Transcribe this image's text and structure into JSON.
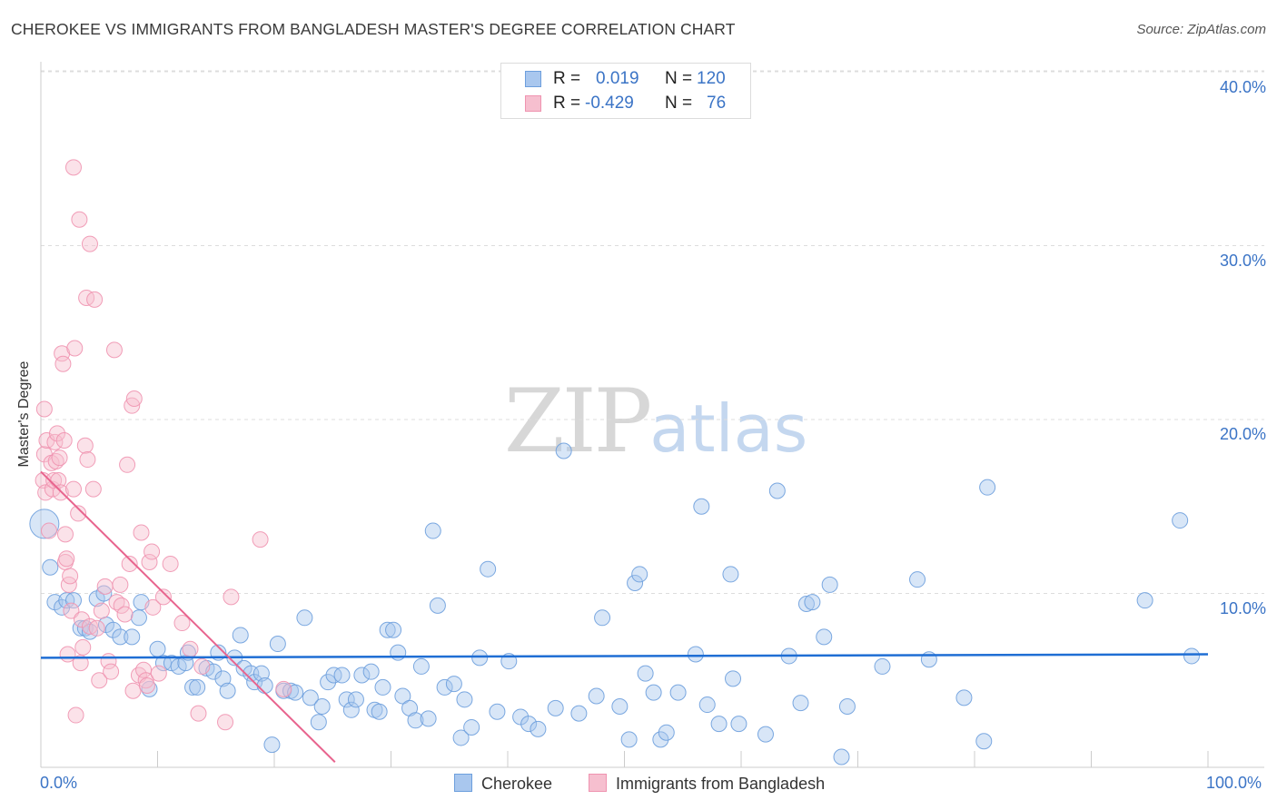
{
  "title": "CHEROKEE VS IMMIGRANTS FROM BANGLADESH MASTER'S DEGREE CORRELATION CHART",
  "source": "Source: ZipAtlas.com",
  "watermark": {
    "zip": "ZIP",
    "atlas": "atlas"
  },
  "colors": {
    "cherokee_fill": "#a9c7ee",
    "cherokee_stroke": "#6d9fdd",
    "cherokee_line": "#1f6ed4",
    "bangladesh_fill": "#f6bfcf",
    "bangladesh_stroke": "#ef93b0",
    "bangladesh_line": "#e8648e",
    "axis_text": "#3b74c6",
    "grid": "#dddddd"
  },
  "legend": {
    "row1": {
      "r_label": "R =",
      "r_value": "0.019",
      "n_label": "N =",
      "n_value": "120"
    },
    "row2": {
      "r_label": "R =",
      "r_value": "-0.429",
      "n_label": "N =",
      "n_value": "76"
    }
  },
  "bottom_legend": {
    "series1": "Cherokee",
    "series2": "Immigrants from Bangladesh"
  },
  "chart_data": {
    "type": "scatter",
    "title": "CHEROKEE VS IMMIGRANTS FROM BANGLADESH MASTER'S DEGREE CORRELATION CHART",
    "xlabel": "",
    "ylabel": "Master's Degree",
    "xlim": [
      0,
      100
    ],
    "ylim": [
      0,
      42
    ],
    "x_tick_labels": [
      "0.0%",
      "100.0%"
    ],
    "y_ticks": [
      10,
      20,
      30,
      40
    ],
    "y_tick_labels": [
      "10.0%",
      "20.0%",
      "30.0%",
      "40.0%"
    ],
    "grid": true,
    "series": [
      {
        "name": "Cherokee",
        "R": 0.019,
        "N": 120,
        "trend": {
          "x0": 0,
          "y0": 6.3,
          "x1": 100,
          "y1": 6.5
        },
        "points": [
          [
            0.3,
            14.0
          ],
          [
            0.8,
            11.5
          ],
          [
            1.2,
            9.5
          ],
          [
            1.8,
            9.2
          ],
          [
            2.2,
            9.6
          ],
          [
            2.8,
            9.6
          ],
          [
            3.4,
            8.0
          ],
          [
            3.8,
            8.0
          ],
          [
            4.2,
            7.8
          ],
          [
            4.8,
            9.7
          ],
          [
            5.4,
            10.0
          ],
          [
            5.6,
            8.2
          ],
          [
            6.2,
            7.9
          ],
          [
            6.8,
            7.5
          ],
          [
            7.8,
            7.5
          ],
          [
            8.4,
            8.6
          ],
          [
            8.6,
            9.5
          ],
          [
            9.3,
            4.5
          ],
          [
            10.0,
            6.8
          ],
          [
            10.5,
            6.0
          ],
          [
            11.2,
            6.0
          ],
          [
            11.8,
            5.8
          ],
          [
            12.4,
            6.0
          ],
          [
            12.6,
            6.6
          ],
          [
            13.0,
            4.6
          ],
          [
            13.4,
            4.6
          ],
          [
            14.2,
            5.7
          ],
          [
            14.8,
            5.5
          ],
          [
            15.2,
            6.6
          ],
          [
            15.6,
            5.1
          ],
          [
            16.0,
            4.4
          ],
          [
            16.6,
            6.3
          ],
          [
            17.1,
            7.6
          ],
          [
            17.4,
            5.7
          ],
          [
            18.0,
            5.4
          ],
          [
            18.3,
            4.9
          ],
          [
            18.9,
            5.4
          ],
          [
            19.2,
            4.7
          ],
          [
            19.8,
            1.3
          ],
          [
            20.3,
            7.1
          ],
          [
            20.8,
            4.4
          ],
          [
            21.4,
            4.4
          ],
          [
            21.8,
            4.3
          ],
          [
            22.6,
            8.6
          ],
          [
            23.1,
            4.0
          ],
          [
            23.8,
            2.6
          ],
          [
            24.1,
            3.5
          ],
          [
            24.6,
            4.9
          ],
          [
            25.1,
            5.3
          ],
          [
            25.8,
            5.3
          ],
          [
            26.2,
            3.9
          ],
          [
            26.6,
            3.3
          ],
          [
            27.0,
            3.9
          ],
          [
            27.5,
            5.3
          ],
          [
            28.3,
            5.5
          ],
          [
            28.6,
            3.3
          ],
          [
            29.0,
            3.2
          ],
          [
            29.3,
            4.6
          ],
          [
            29.7,
            7.9
          ],
          [
            30.2,
            7.9
          ],
          [
            30.6,
            6.6
          ],
          [
            31.0,
            4.1
          ],
          [
            31.6,
            3.4
          ],
          [
            32.1,
            2.7
          ],
          [
            32.6,
            5.8
          ],
          [
            33.2,
            2.8
          ],
          [
            33.6,
            13.6
          ],
          [
            34.0,
            9.3
          ],
          [
            34.6,
            4.6
          ],
          [
            35.4,
            4.8
          ],
          [
            36.0,
            1.7
          ],
          [
            36.3,
            3.9
          ],
          [
            36.9,
            2.3
          ],
          [
            37.6,
            6.3
          ],
          [
            38.3,
            11.4
          ],
          [
            39.1,
            3.2
          ],
          [
            40.1,
            6.1
          ],
          [
            41.1,
            2.9
          ],
          [
            41.8,
            2.5
          ],
          [
            42.6,
            2.2
          ],
          [
            44.1,
            3.4
          ],
          [
            44.8,
            18.2
          ],
          [
            46.1,
            3.1
          ],
          [
            47.6,
            4.1
          ],
          [
            48.1,
            8.6
          ],
          [
            49.6,
            3.5
          ],
          [
            50.4,
            1.6
          ],
          [
            50.9,
            10.6
          ],
          [
            51.3,
            11.1
          ],
          [
            51.8,
            5.4
          ],
          [
            52.5,
            4.3
          ],
          [
            53.1,
            1.6
          ],
          [
            53.6,
            2.0
          ],
          [
            54.6,
            4.3
          ],
          [
            56.1,
            6.5
          ],
          [
            56.6,
            15.0
          ],
          [
            57.1,
            3.6
          ],
          [
            58.1,
            2.5
          ],
          [
            59.1,
            11.1
          ],
          [
            59.3,
            5.1
          ],
          [
            59.8,
            2.5
          ],
          [
            62.1,
            1.9
          ],
          [
            63.1,
            15.9
          ],
          [
            64.1,
            6.4
          ],
          [
            65.1,
            3.7
          ],
          [
            65.6,
            9.4
          ],
          [
            66.1,
            9.5
          ],
          [
            67.1,
            7.5
          ],
          [
            67.6,
            10.5
          ],
          [
            68.6,
            0.6
          ],
          [
            69.1,
            3.5
          ],
          [
            72.1,
            5.8
          ],
          [
            75.1,
            10.8
          ],
          [
            76.1,
            6.2
          ],
          [
            79.1,
            4.0
          ],
          [
            80.8,
            1.5
          ],
          [
            81.1,
            16.1
          ],
          [
            94.6,
            9.6
          ],
          [
            97.6,
            14.2
          ],
          [
            98.6,
            6.4
          ]
        ]
      },
      {
        "name": "Immigrants from Bangladesh",
        "R": -0.429,
        "N": 76,
        "trend": {
          "x0": 0,
          "y0": 17.0,
          "x1": 25.2,
          "y1": 0.3
        },
        "points": [
          [
            0.2,
            16.5
          ],
          [
            0.3,
            18.0
          ],
          [
            0.3,
            20.6
          ],
          [
            0.4,
            15.8
          ],
          [
            0.5,
            18.8
          ],
          [
            0.7,
            13.6
          ],
          [
            0.9,
            17.5
          ],
          [
            1.0,
            16.0
          ],
          [
            1.1,
            16.5
          ],
          [
            1.2,
            18.7
          ],
          [
            1.3,
            17.6
          ],
          [
            1.4,
            19.2
          ],
          [
            1.5,
            16.5
          ],
          [
            1.6,
            17.8
          ],
          [
            1.7,
            15.8
          ],
          [
            1.8,
            23.8
          ],
          [
            1.9,
            23.2
          ],
          [
            2.0,
            18.8
          ],
          [
            2.1,
            13.4
          ],
          [
            2.1,
            11.8
          ],
          [
            2.2,
            12.0
          ],
          [
            2.3,
            6.5
          ],
          [
            2.4,
            10.5
          ],
          [
            2.5,
            11.0
          ],
          [
            2.6,
            9.0
          ],
          [
            2.8,
            34.5
          ],
          [
            2.8,
            16.0
          ],
          [
            2.9,
            24.1
          ],
          [
            3.0,
            3.0
          ],
          [
            3.2,
            14.6
          ],
          [
            3.3,
            31.5
          ],
          [
            3.4,
            6.0
          ],
          [
            3.5,
            8.5
          ],
          [
            3.6,
            6.9
          ],
          [
            3.8,
            18.5
          ],
          [
            3.9,
            27.0
          ],
          [
            4.0,
            17.7
          ],
          [
            4.2,
            30.1
          ],
          [
            4.2,
            8.1
          ],
          [
            4.5,
            16.0
          ],
          [
            4.6,
            26.9
          ],
          [
            4.8,
            8.0
          ],
          [
            5.0,
            5.0
          ],
          [
            5.2,
            9.0
          ],
          [
            5.5,
            10.4
          ],
          [
            5.8,
            6.1
          ],
          [
            6.0,
            5.5
          ],
          [
            6.3,
            24.0
          ],
          [
            6.5,
            9.5
          ],
          [
            6.8,
            10.5
          ],
          [
            6.9,
            9.3
          ],
          [
            7.2,
            8.8
          ],
          [
            7.4,
            17.4
          ],
          [
            7.6,
            11.7
          ],
          [
            7.8,
            20.8
          ],
          [
            7.9,
            4.4
          ],
          [
            8.0,
            21.2
          ],
          [
            8.4,
            5.3
          ],
          [
            8.6,
            13.5
          ],
          [
            8.8,
            5.6
          ],
          [
            9.0,
            5.0
          ],
          [
            9.1,
            4.7
          ],
          [
            9.3,
            11.8
          ],
          [
            9.5,
            12.4
          ],
          [
            9.6,
            9.2
          ],
          [
            10.1,
            5.4
          ],
          [
            10.5,
            9.8
          ],
          [
            11.1,
            11.7
          ],
          [
            12.1,
            8.3
          ],
          [
            12.8,
            6.8
          ],
          [
            13.5,
            3.1
          ],
          [
            13.8,
            5.8
          ],
          [
            15.8,
            2.6
          ],
          [
            16.3,
            9.8
          ],
          [
            18.8,
            13.1
          ],
          [
            20.8,
            4.5
          ]
        ]
      }
    ]
  }
}
